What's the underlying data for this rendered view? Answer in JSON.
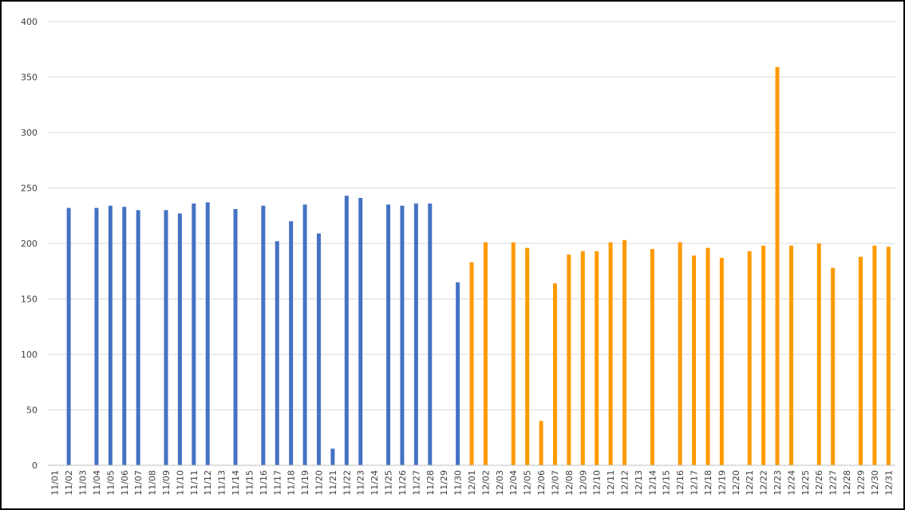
{
  "chart_data": {
    "type": "bar",
    "title": "",
    "xlabel": "",
    "ylabel": "",
    "ylim": [
      0,
      400
    ],
    "yticks": [
      0,
      50,
      100,
      150,
      200,
      250,
      300,
      350,
      400
    ],
    "grid": true,
    "legend": "none",
    "categories": [
      "11/01",
      "11/02",
      "11/03",
      "11/04",
      "11/05",
      "11/06",
      "11/07",
      "11/08",
      "11/09",
      "11/10",
      "11/11",
      "11/12",
      "11/13",
      "11/14",
      "11/15",
      "11/16",
      "11/17",
      "11/18",
      "11/19",
      "11/20",
      "11/21",
      "11/22",
      "11/23",
      "11/24",
      "11/25",
      "11/26",
      "11/27",
      "11/28",
      "11/29",
      "11/30",
      "12/01",
      "12/02",
      "12/03",
      "12/04",
      "12/05",
      "12/06",
      "12/07",
      "12/08",
      "12/09",
      "12/10",
      "12/11",
      "12/12",
      "12/13",
      "12/14",
      "12/15",
      "12/16",
      "12/17",
      "12/18",
      "12/19",
      "12/20",
      "12/21",
      "12/22",
      "12/23",
      "12/24",
      "12/25",
      "12/26",
      "12/27",
      "12/28",
      "12/29",
      "12/30",
      "12/31"
    ],
    "series": [
      {
        "color": "#4472C4",
        "values": [
          null,
          232,
          null,
          232,
          234,
          233,
          230,
          null,
          230,
          227,
          236,
          237,
          null,
          231,
          null,
          234,
          202,
          220,
          235,
          209,
          15,
          243,
          241,
          null,
          235,
          234,
          236,
          236,
          null,
          165,
          null,
          null,
          null,
          null,
          null,
          null,
          null,
          null,
          null,
          null,
          null,
          null,
          null,
          null,
          null,
          null,
          null,
          null,
          null,
          null,
          null,
          null,
          null,
          null,
          null,
          null,
          null,
          null,
          null,
          null,
          null
        ]
      },
      {
        "color": "#FF9900",
        "values": [
          null,
          null,
          null,
          null,
          null,
          null,
          null,
          null,
          null,
          null,
          null,
          null,
          null,
          null,
          null,
          null,
          null,
          null,
          null,
          null,
          null,
          null,
          null,
          null,
          null,
          null,
          null,
          null,
          null,
          null,
          183,
          201,
          null,
          201,
          196,
          40,
          164,
          190,
          193,
          193,
          201,
          203,
          null,
          195,
          null,
          201,
          189,
          196,
          187,
          null,
          193,
          198,
          359,
          198,
          null,
          200,
          178,
          null,
          188,
          198,
          197
        ]
      }
    ]
  }
}
